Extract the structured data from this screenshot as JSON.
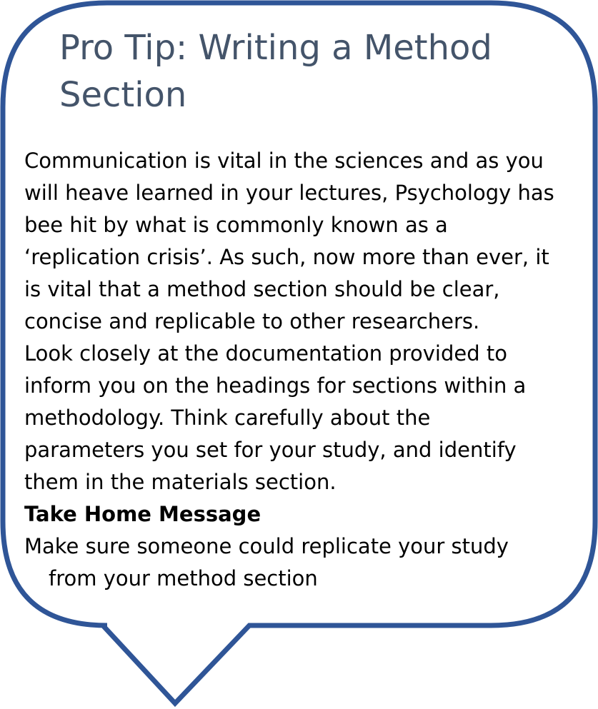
{
  "callout": {
    "border_color": "#2f5597",
    "fill_color": "#ffffff",
    "title_color": "#44546a",
    "title_line1": "Pro Tip: Writing a Method",
    "title_line2": "Section",
    "lines": [
      "Communication is vital in the sciences and as you",
      "will heave learned in your lectures, Psychology has",
      "bee hit by what is commonly known as a",
      "‘replication crisis’. As such, now more than ever, it",
      "is vital that a method section should be clear,",
      "concise and replicable to other researchers.",
      "Look closely at the documentation provided to",
      "inform you on the headings for sections within a",
      "methodology. Think carefully about the",
      "parameters you set for your study, and identify",
      "them in the materials section."
    ],
    "take_home_heading": "Take Home Message",
    "take_home_line1": "Make sure someone could replicate your study",
    "take_home_line2": "from your method section"
  }
}
